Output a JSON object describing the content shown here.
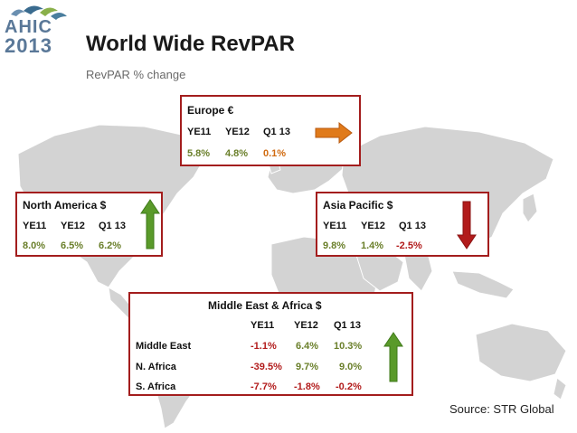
{
  "logo": {
    "line1": "AHIC",
    "line2": "2013"
  },
  "title": "World Wide RevPAR",
  "subtitle": "RevPAR % change",
  "columns": [
    "YE11",
    "YE12",
    "Q1 13"
  ],
  "europe": {
    "title": "Europe €",
    "values": [
      "5.8%",
      "4.8%",
      "0.1%"
    ],
    "trend": "right-arrow"
  },
  "north_america": {
    "title": "North America $",
    "values": [
      "8.0%",
      "6.5%",
      "6.2%"
    ],
    "trend": "up-arrow"
  },
  "asia_pacific": {
    "title": "Asia Pacific $",
    "values": [
      "9.8%",
      "1.4%",
      "-2.5%"
    ],
    "trend": "down-arrow"
  },
  "mea": {
    "title": "Middle East & Africa $",
    "rows": [
      {
        "label": "Middle East",
        "values": [
          "-1.1%",
          "6.4%",
          "10.3%"
        ]
      },
      {
        "label": "N. Africa",
        "values": [
          "-39.5%",
          "9.7%",
          "9.0%"
        ]
      },
      {
        "label": "S. Africa",
        "values": [
          "-7.7%",
          "-1.8%",
          "-0.2%"
        ]
      }
    ],
    "trend": "up-arrow"
  },
  "source": "Source: STR Global",
  "colors": {
    "border": "#a31d1d",
    "green": "#6a7f2a",
    "orange": "#d06a10",
    "red": "#b21b1b",
    "arrow_green": "#5a9a2a",
    "map": "#cfcfcf"
  }
}
